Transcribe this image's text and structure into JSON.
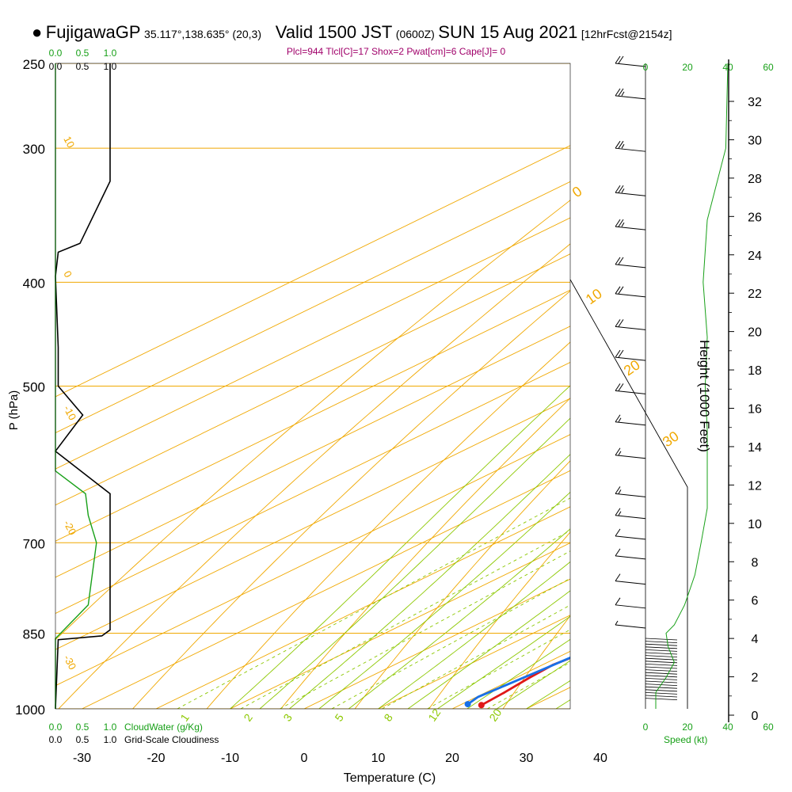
{
  "header": {
    "marker": "●",
    "station": "FujigawaGP",
    "coords": "35.117°,138.635° (20,3)",
    "valid_prefix": "Valid 1500 JST",
    "valid_utc": "(0600Z)",
    "date": "SUN 15 Aug 2021",
    "forecast": "[12hrFcst@2154z]"
  },
  "indices": "Plcl=944 Tlcl[C]=17 Shox=2 Pwat[cm]=6 Cape[J]= 0",
  "colors": {
    "isobar": "#f0a800",
    "isotherm": "#f0a800",
    "dry_adiabat": "#f0a800",
    "moist_adiabat": "#8cc800",
    "mixing_ratio": "#8cc800",
    "temperature": "#e01818",
    "dewpoint": "#1870e8",
    "cloud_water": "#18a018",
    "cloudiness": "#000000",
    "wind_speed": "#18a018",
    "index_text": "#a0006a"
  },
  "chart_data": {
    "type": "line",
    "plot": "skew-T log-P",
    "xlabel": "Temperature (C)",
    "ylabel": "P (hPa)",
    "xticks": [
      -30,
      -20,
      -10,
      0,
      10,
      20,
      30,
      40
    ],
    "xlim": [
      -33,
      47
    ],
    "pressure_ticks": [
      250,
      300,
      400,
      500,
      700,
      850,
      1000
    ],
    "ylim": [
      1000,
      250
    ],
    "height_axis": {
      "label": "Height (1000 Feet)",
      "ticks": [
        0,
        2,
        4,
        6,
        8,
        10,
        12,
        14,
        16,
        18,
        20,
        22,
        24,
        26,
        28,
        30,
        32
      ]
    },
    "dry_adiabat_labels": [
      "-10",
      "0",
      "10",
      "20",
      "30"
    ],
    "isotherm_labels": [
      "10",
      "0",
      "-10",
      "-20",
      "-30"
    ],
    "mixing_ratio_labels": [
      "1",
      "2",
      "3",
      "5",
      "8",
      "12",
      "20"
    ],
    "cloud_water_axis": {
      "label": "CloudWater (g/Kg)",
      "ticks": [
        "0.0",
        "0.5",
        "1.0"
      ]
    },
    "cloudiness_axis": {
      "label": "Grid-Scale Cloudiness",
      "ticks": [
        "0.0",
        "0.5",
        "1.0"
      ]
    },
    "speed_axis": {
      "label": "Speed (kt)",
      "ticks": [
        "0",
        "20",
        "40",
        "60"
      ]
    },
    "series": [
      {
        "name": "Temperature",
        "color": "#e01818",
        "points": [
          [
            22.9,
            992
          ],
          [
            22.5,
            965
          ],
          [
            21.8,
            935
          ],
          [
            21.4,
            910
          ],
          [
            23.5,
            850
          ],
          [
            24.2,
            800
          ],
          [
            23.5,
            755
          ],
          [
            22.2,
            700
          ],
          [
            19.8,
            640
          ],
          [
            18.2,
            600
          ],
          [
            16.2,
            555
          ],
          [
            15.3,
            500
          ],
          [
            12.5,
            450
          ],
          [
            9.5,
            400
          ],
          [
            5.0,
            350
          ],
          [
            -1.5,
            300
          ],
          [
            -8.0,
            262
          ]
        ]
      },
      {
        "name": "Dewpoint",
        "color": "#1870e8",
        "points": [
          [
            20.8,
            990
          ],
          [
            20.2,
            975
          ],
          [
            20.6,
            955
          ],
          [
            21.2,
            925
          ],
          [
            22.7,
            850
          ],
          [
            24.1,
            800
          ],
          [
            23.4,
            755
          ],
          [
            21.8,
            700
          ],
          [
            19.4,
            640
          ],
          [
            17.8,
            600
          ],
          [
            13.6,
            585
          ],
          [
            14.8,
            550
          ],
          [
            14.6,
            500
          ],
          [
            10.5,
            450
          ],
          [
            6.2,
            400
          ],
          [
            1.8,
            350
          ],
          [
            -4.5,
            300
          ],
          [
            -12.0,
            262
          ]
        ]
      },
      {
        "name": "Grid-Scale Cloudiness",
        "color": "#000000",
        "points": [
          [
            1.0,
            250
          ],
          [
            1.0,
            322
          ],
          [
            0.45,
            368
          ],
          [
            0.05,
            375
          ],
          [
            0.0,
            395
          ],
          [
            0.05,
            460
          ],
          [
            0.05,
            500
          ],
          [
            0.5,
            532
          ],
          [
            0.0,
            575
          ],
          [
            1.0,
            630
          ],
          [
            1.0,
            844
          ],
          [
            0.85,
            855
          ],
          [
            0.05,
            862
          ],
          [
            0.0,
            1000
          ]
        ]
      },
      {
        "name": "CloudWater",
        "color": "#18a018",
        "points": [
          [
            0.0,
            250
          ],
          [
            0.0,
            600
          ],
          [
            0.55,
            630
          ],
          [
            0.6,
            660
          ],
          [
            0.75,
            700
          ],
          [
            0.6,
            800
          ],
          [
            0.0,
            860
          ],
          [
            0.0,
            1000
          ]
        ]
      },
      {
        "name": "Speed",
        "color": "#18a018",
        "points": [
          [
            40,
            250
          ],
          [
            39,
            300
          ],
          [
            30,
            350
          ],
          [
            28,
            400
          ],
          [
            30,
            450
          ],
          [
            29,
            500
          ],
          [
            30,
            550
          ],
          [
            30,
            600
          ],
          [
            30,
            650
          ],
          [
            27,
            700
          ],
          [
            24,
            750
          ],
          [
            19,
            800
          ],
          [
            14,
            835
          ],
          [
            10,
            850
          ],
          [
            11,
            875
          ],
          [
            14,
            905
          ],
          [
            10,
            935
          ],
          [
            5,
            965
          ],
          [
            5,
            1000
          ]
        ]
      }
    ],
    "wind_barbs_kt": [
      [
        250,
        20
      ],
      [
        268,
        25
      ],
      [
        300,
        25
      ],
      [
        330,
        25
      ],
      [
        355,
        25
      ],
      [
        385,
        20
      ],
      [
        410,
        20
      ],
      [
        440,
        20
      ],
      [
        470,
        20
      ],
      [
        505,
        20
      ],
      [
        540,
        15
      ],
      [
        580,
        15
      ],
      [
        630,
        15
      ],
      [
        660,
        15
      ],
      [
        690,
        10
      ],
      [
        720,
        10
      ],
      [
        760,
        10
      ],
      [
        800,
        10
      ],
      [
        835,
        5
      ]
    ]
  }
}
